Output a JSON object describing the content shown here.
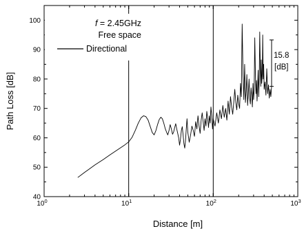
{
  "chart_data": {
    "type": "line",
    "xlabel": "Distance [m]",
    "ylabel": "Path Loss [dB]",
    "x_scale": "log",
    "xlim": [
      1,
      1000
    ],
    "ylim": [
      40,
      105
    ],
    "x_ticks": [
      {
        "value": 1,
        "base": "10",
        "exp": "0"
      },
      {
        "value": 10,
        "base": "10",
        "exp": "1"
      },
      {
        "value": 100,
        "base": "10",
        "exp": "2"
      },
      {
        "value": 1000,
        "base": "10",
        "exp": "3"
      }
    ],
    "y_ticks": [
      40,
      50,
      60,
      70,
      80,
      90,
      100
    ],
    "grid": false,
    "vertical_reference_lines": [
      10,
      100
    ],
    "legend": {
      "placement": "top-left",
      "lines": [
        {
          "italic": "f",
          "text": " = 2.45GHz"
        },
        {
          "italic": "",
          "text": "Free space"
        }
      ],
      "entry": "Directional"
    },
    "annotation": {
      "line1": "15.8",
      "line2": "[dB]",
      "x": 490,
      "y_from": 77.5,
      "y_to": 93.3
    },
    "series": [
      {
        "name": "Directional",
        "color": "#000000",
        "x": [
          2.5,
          3,
          4,
          5,
          6,
          7,
          8,
          9,
          10,
          11,
          12,
          13,
          14,
          15,
          16,
          17,
          18,
          19,
          20,
          21,
          22,
          23,
          24,
          25,
          26,
          27,
          28,
          29,
          30,
          31,
          32,
          33,
          34,
          35,
          36,
          37,
          38,
          39,
          40,
          41,
          42,
          43,
          44,
          45,
          46,
          47,
          48,
          49,
          50,
          52,
          54,
          56,
          58,
          60,
          62,
          64,
          66,
          68,
          70,
          72,
          74,
          76,
          78,
          80,
          82,
          84,
          86,
          88,
          90,
          92,
          94,
          96,
          98,
          100,
          105,
          110,
          115,
          120,
          125,
          130,
          135,
          140,
          145,
          150,
          155,
          160,
          165,
          170,
          175,
          180,
          185,
          190,
          195,
          200,
          205,
          210,
          215,
          220,
          225,
          230,
          235,
          240,
          245,
          250,
          255,
          260,
          265,
          270,
          275,
          280,
          285,
          290,
          295,
          300,
          305,
          310,
          315,
          320,
          325,
          330,
          335,
          340,
          345,
          350,
          355,
          360,
          365,
          370,
          375,
          380,
          385,
          390,
          395,
          400,
          410,
          420,
          430,
          440,
          450,
          460,
          470,
          480,
          490
        ],
        "y": [
          46.5,
          48.2,
          50.8,
          52.6,
          54.2,
          55.5,
          56.6,
          57.6,
          58.6,
          60.2,
          62.6,
          65.0,
          66.8,
          67.5,
          67.2,
          66.0,
          63.8,
          61.8,
          61.0,
          62.5,
          64.6,
          66.2,
          67.0,
          66.5,
          65.0,
          63.2,
          62.0,
          61.0,
          62.5,
          64.5,
          63.0,
          61.2,
          62.0,
          63.5,
          64.8,
          63.0,
          61.5,
          60.0,
          57.5,
          59.5,
          62.5,
          63.8,
          61.0,
          58.0,
          56.5,
          59.0,
          63.0,
          66.5,
          62.0,
          58.5,
          61.0,
          64.0,
          62.5,
          60.5,
          65.5,
          63.0,
          67.5,
          64.0,
          61.5,
          66.0,
          68.5,
          65.5,
          62.5,
          66.5,
          64.0,
          69.0,
          66.5,
          63.5,
          67.5,
          65.0,
          70.5,
          67.5,
          63.0,
          66.5,
          64.0,
          68.5,
          65.0,
          69.5,
          66.5,
          71.0,
          67.0,
          70.0,
          66.0,
          72.5,
          68.0,
          74.0,
          70.5,
          68.0,
          72.0,
          76.5,
          72.0,
          69.5,
          74.5,
          71.5,
          70.0,
          78.5,
          74.0,
          98.7,
          82.0,
          73.0,
          85.0,
          72.0,
          76.0,
          81.5,
          71.0,
          75.0,
          80.0,
          73.5,
          71.5,
          77.0,
          74.5,
          70.5,
          78.5,
          73.0,
          76.0,
          94.0,
          82.0,
          75.0,
          79.5,
          72.5,
          77.0,
          83.0,
          74.0,
          80.5,
          96.0,
          84.0,
          77.5,
          86.5,
          78.5,
          82.0,
          95.0,
          80.0,
          85.0,
          76.5,
          79.0,
          74.5,
          83.5,
          75.0,
          78.0,
          73.5,
          76.5,
          74.0,
          77.5
        ]
      }
    ]
  }
}
